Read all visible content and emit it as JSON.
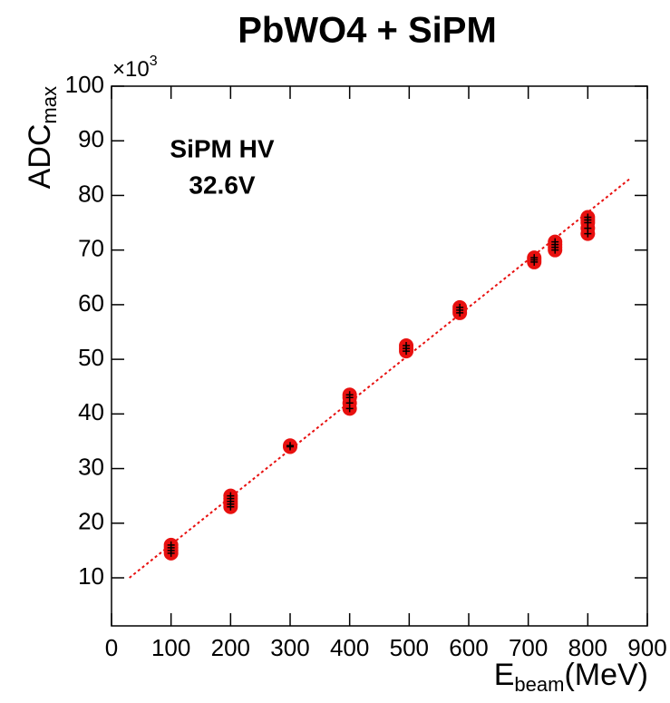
{
  "chart_data": {
    "type": "scatter",
    "title": "PbWO4 + SiPM",
    "x_label": {
      "main": "E",
      "sub": "beam",
      "suffix": "(MeV)"
    },
    "y_label": {
      "main": "ADC",
      "sub": "max"
    },
    "y_multiplier": {
      "base": "×10",
      "exponent": "3"
    },
    "annotations": [
      "SiPM HV",
      "32.6V"
    ],
    "x": [
      100,
      100,
      100,
      100,
      200,
      200,
      200,
      200,
      200,
      300,
      300,
      400,
      400,
      400,
      400,
      495,
      495,
      495,
      585,
      585,
      585,
      710,
      710,
      710,
      745,
      745,
      745,
      745,
      800,
      800,
      800,
      800,
      800
    ],
    "values": [
      14.5,
      15,
      15.5,
      16,
      23,
      23.5,
      24,
      24.5,
      25,
      34,
      34.2,
      41,
      42,
      43,
      43.5,
      51.5,
      52,
      52.5,
      58.5,
      59,
      59.5,
      67.8,
      68.2,
      68.6,
      70,
      70.5,
      71,
      71.5,
      73,
      74,
      75,
      75.5,
      76
    ],
    "color": "#e8100f",
    "fit": {
      "x": [
        30,
        870
      ],
      "values": [
        10,
        83
      ],
      "color": "#e8100f"
    },
    "xlim": [
      0,
      900
    ],
    "xticks": [
      0,
      100,
      200,
      300,
      400,
      500,
      600,
      700,
      800,
      900
    ],
    "ylim": [
      1.2,
      100
    ],
    "yticks": [
      10,
      20,
      30,
      40,
      50,
      60,
      70,
      80,
      90,
      100
    ]
  }
}
